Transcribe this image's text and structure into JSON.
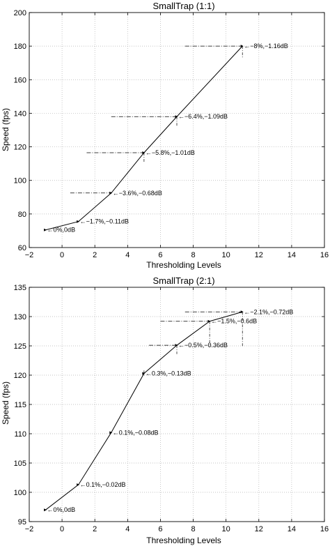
{
  "chart_data": [
    {
      "type": "line",
      "title": "SmallTrap (1:1)",
      "xlabel": "Thresholding Levels",
      "ylabel": "Speed (fps)",
      "xlim": [
        -2,
        16
      ],
      "ylim": [
        60,
        200
      ],
      "xticks": [
        -2,
        0,
        2,
        4,
        6,
        8,
        10,
        12,
        14,
        16
      ],
      "yticks": [
        60,
        80,
        100,
        120,
        140,
        160,
        180,
        200
      ],
      "grid": true,
      "series": [
        {
          "x": [
            -1,
            1,
            3,
            5,
            7,
            11
          ],
          "y": [
            70.5,
            75.5,
            92.5,
            116.5,
            138,
            180
          ],
          "labels": [
            "0%,0dB",
            "-1.7%,-0.11dB",
            "-3.6%,-0.68dB",
            "-5.8%,-1.01dB",
            "-6.4%,-1.09dB",
            "-8%,-1.16dB"
          ]
        }
      ],
      "guides": [
        {
          "x0": 0.5,
          "x1": 3,
          "y": 92.5
        },
        {
          "x0": 1.5,
          "x1": 5,
          "y": 116.5,
          "vy0": 116.5,
          "vy1": 111
        },
        {
          "x0": 3,
          "x1": 7,
          "y": 138,
          "vy0": 138,
          "vy1": 132
        },
        {
          "x0": 7.5,
          "x1": 11,
          "y": 180,
          "vy0": 180,
          "vy1": 173
        }
      ]
    },
    {
      "type": "line",
      "title": "SmallTrap (2:1)",
      "xlabel": "Thresholding Levels",
      "ylabel": "Speed (fps)",
      "xlim": [
        -2,
        16
      ],
      "ylim": [
        95,
        135
      ],
      "xticks": [
        -2,
        0,
        2,
        4,
        6,
        8,
        10,
        12,
        14,
        16
      ],
      "yticks": [
        95,
        100,
        105,
        110,
        115,
        120,
        125,
        130,
        135
      ],
      "grid": true,
      "series": [
        {
          "x": [
            -1,
            1,
            3,
            5,
            7,
            9,
            11
          ],
          "y": [
            97,
            101.3,
            110.2,
            120.3,
            125.1,
            129.2,
            130.8
          ],
          "labels": [
            "0%,0dB",
            "0.1%,-0.02dB",
            "0.1%,-0.08dB",
            "0.3%,-0.13dB",
            "-0.5%,-0.36dB",
            "-1.5%,-0.6dB",
            "-2.1%,-0.72dB"
          ]
        }
      ],
      "guides": [
        {
          "x0": 5,
          "x1": 5,
          "y": 120.3,
          "vy0": 120.8,
          "vy1": 119.8
        },
        {
          "x0": 5.3,
          "x1": 7,
          "y": 125.1,
          "vy0": 125.1,
          "vy1": 123.6
        },
        {
          "x0": 6,
          "x1": 9,
          "y": 129.2,
          "vy0": 129.2,
          "vy1": 124.8
        },
        {
          "x0": 7.5,
          "x1": 11,
          "y": 130.8,
          "vy0": 130.8,
          "vy1": 124.8
        }
      ]
    }
  ]
}
